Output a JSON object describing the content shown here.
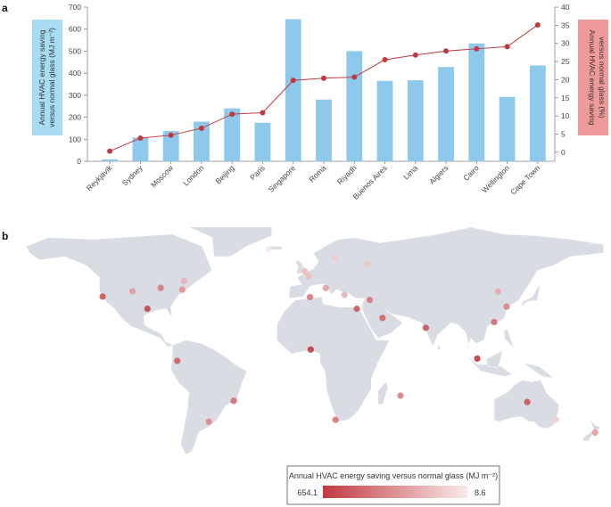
{
  "panels": {
    "a": "a",
    "b": "b"
  },
  "chart_data": {
    "type": "bar+line",
    "categories": [
      "Reykjavik",
      "Sydney",
      "Moscow",
      "London",
      "Beijing",
      "Paris",
      "Singapore",
      "Roma",
      "Riyadh",
      "Buenos Aires",
      "Lima",
      "Algiers",
      "Cairo",
      "Wellington",
      "Cape Town"
    ],
    "bar_series": {
      "values": [
        8.6,
        108,
        137,
        180,
        240,
        175,
        645,
        280,
        500,
        365,
        368,
        428,
        535,
        292,
        435
      ],
      "color": "#8ec8ea"
    },
    "line_series": {
      "values": [
        0.3,
        3.9,
        4.7,
        6.6,
        10.5,
        10.9,
        19.8,
        20.4,
        20.7,
        25.5,
        26.8,
        27.9,
        28.5,
        29.1,
        35.1
      ],
      "color": "#c0393f"
    },
    "ylabel_left": "Annual HVAC energy saving versus normal glass (MJ m⁻²)",
    "ylabel_right": "Annual HVAC energy saving versus normal glass (%)",
    "ylim_left": [
      0,
      700
    ],
    "yticks_left": [
      "0",
      "100",
      "200",
      "300",
      "400",
      "500",
      "600",
      "700"
    ],
    "ylim_right": [
      -2.5,
      40
    ],
    "yticks_right": [
      "0",
      "5",
      "10",
      "15",
      "20",
      "25",
      "30",
      "35",
      "40"
    ],
    "left_label_bg": "#a8dcf2",
    "right_label_bg": "#ef9a9a"
  },
  "map": {
    "legend_title": "Annual HVAC energy saving versus normal glass (MJ m⁻²)",
    "legend_min_label": "654.1",
    "legend_max_label": "8.6",
    "color_high": "#c0393f",
    "color_low": "#fbeaea",
    "land_color": "#d9dde3",
    "ocean_color": "#ffffff",
    "points": [
      {
        "lon": -122,
        "lat": 37,
        "value": 560
      },
      {
        "lon": -104,
        "lat": 40,
        "value": 300
      },
      {
        "lon": -87,
        "lat": 42,
        "value": 420
      },
      {
        "lon": -95,
        "lat": 30,
        "value": 600
      },
      {
        "lon": -74,
        "lat": 41,
        "value": 330
      },
      {
        "lon": -73,
        "lat": 46,
        "value": 220
      },
      {
        "lon": -77,
        "lat": 0,
        "value": 520
      },
      {
        "lon": -43,
        "lat": -23,
        "value": 470
      },
      {
        "lon": -58,
        "lat": -35,
        "value": 365
      },
      {
        "lon": -22,
        "lat": 64,
        "value": 9
      },
      {
        "lon": -0.1,
        "lat": 51.5,
        "value": 180
      },
      {
        "lon": 2.3,
        "lat": 48.9,
        "value": 175
      },
      {
        "lon": 18,
        "lat": 59,
        "value": 120
      },
      {
        "lon": 37.6,
        "lat": 55.8,
        "value": 137
      },
      {
        "lon": 12.5,
        "lat": 41.9,
        "value": 280
      },
      {
        "lon": 3,
        "lat": 36.7,
        "value": 428
      },
      {
        "lon": 23.7,
        "lat": 38,
        "value": 200
      },
      {
        "lon": 31.2,
        "lat": 30,
        "value": 535
      },
      {
        "lon": 39,
        "lat": 35,
        "value": 420
      },
      {
        "lon": 46.7,
        "lat": 24.7,
        "value": 500
      },
      {
        "lon": 72.8,
        "lat": 19,
        "value": 560
      },
      {
        "lon": 3.4,
        "lat": 6.5,
        "value": 640
      },
      {
        "lon": 57.5,
        "lat": -20,
        "value": 390
      },
      {
        "lon": 18.4,
        "lat": -33.9,
        "value": 435
      },
      {
        "lon": 116.4,
        "lat": 39.9,
        "value": 240
      },
      {
        "lon": 121.5,
        "lat": 31.2,
        "value": 380
      },
      {
        "lon": 114,
        "lat": 22.3,
        "value": 470
      },
      {
        "lon": 103.8,
        "lat": 1.3,
        "value": 645
      },
      {
        "lon": 133.9,
        "lat": -23.7,
        "value": 560
      },
      {
        "lon": 151.2,
        "lat": -33.9,
        "value": 108
      },
      {
        "lon": 174.8,
        "lat": -41.3,
        "value": 292
      }
    ]
  }
}
